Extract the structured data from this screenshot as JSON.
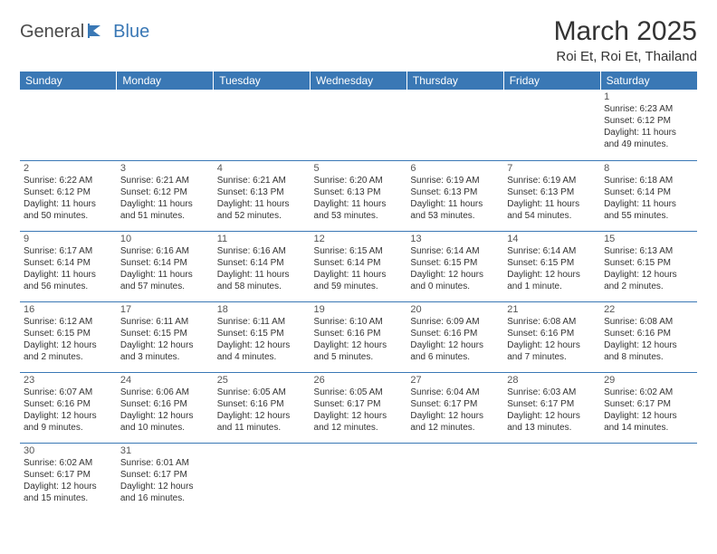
{
  "logo": {
    "part1": "General",
    "part2": "Blue"
  },
  "title": "March 2025",
  "location": "Roi Et, Roi Et, Thailand",
  "colors": {
    "header_bg": "#3a78b5",
    "header_text": "#ffffff",
    "border": "#3a78b5",
    "text": "#333333",
    "logo_gray": "#4a4a4a",
    "logo_blue": "#3a78b5",
    "background": "#ffffff"
  },
  "typography": {
    "title_fontsize": 30,
    "location_fontsize": 15,
    "dayheader_fontsize": 12,
    "cell_fontsize": 10
  },
  "dayHeaders": [
    "Sunday",
    "Monday",
    "Tuesday",
    "Wednesday",
    "Thursday",
    "Friday",
    "Saturday"
  ],
  "weeks": [
    [
      null,
      null,
      null,
      null,
      null,
      null,
      {
        "n": "1",
        "sr": "Sunrise: 6:23 AM",
        "ss": "Sunset: 6:12 PM",
        "d1": "Daylight: 11 hours",
        "d2": "and 49 minutes."
      }
    ],
    [
      {
        "n": "2",
        "sr": "Sunrise: 6:22 AM",
        "ss": "Sunset: 6:12 PM",
        "d1": "Daylight: 11 hours",
        "d2": "and 50 minutes."
      },
      {
        "n": "3",
        "sr": "Sunrise: 6:21 AM",
        "ss": "Sunset: 6:12 PM",
        "d1": "Daylight: 11 hours",
        "d2": "and 51 minutes."
      },
      {
        "n": "4",
        "sr": "Sunrise: 6:21 AM",
        "ss": "Sunset: 6:13 PM",
        "d1": "Daylight: 11 hours",
        "d2": "and 52 minutes."
      },
      {
        "n": "5",
        "sr": "Sunrise: 6:20 AM",
        "ss": "Sunset: 6:13 PM",
        "d1": "Daylight: 11 hours",
        "d2": "and 53 minutes."
      },
      {
        "n": "6",
        "sr": "Sunrise: 6:19 AM",
        "ss": "Sunset: 6:13 PM",
        "d1": "Daylight: 11 hours",
        "d2": "and 53 minutes."
      },
      {
        "n": "7",
        "sr": "Sunrise: 6:19 AM",
        "ss": "Sunset: 6:13 PM",
        "d1": "Daylight: 11 hours",
        "d2": "and 54 minutes."
      },
      {
        "n": "8",
        "sr": "Sunrise: 6:18 AM",
        "ss": "Sunset: 6:14 PM",
        "d1": "Daylight: 11 hours",
        "d2": "and 55 minutes."
      }
    ],
    [
      {
        "n": "9",
        "sr": "Sunrise: 6:17 AM",
        "ss": "Sunset: 6:14 PM",
        "d1": "Daylight: 11 hours",
        "d2": "and 56 minutes."
      },
      {
        "n": "10",
        "sr": "Sunrise: 6:16 AM",
        "ss": "Sunset: 6:14 PM",
        "d1": "Daylight: 11 hours",
        "d2": "and 57 minutes."
      },
      {
        "n": "11",
        "sr": "Sunrise: 6:16 AM",
        "ss": "Sunset: 6:14 PM",
        "d1": "Daylight: 11 hours",
        "d2": "and 58 minutes."
      },
      {
        "n": "12",
        "sr": "Sunrise: 6:15 AM",
        "ss": "Sunset: 6:14 PM",
        "d1": "Daylight: 11 hours",
        "d2": "and 59 minutes."
      },
      {
        "n": "13",
        "sr": "Sunrise: 6:14 AM",
        "ss": "Sunset: 6:15 PM",
        "d1": "Daylight: 12 hours",
        "d2": "and 0 minutes."
      },
      {
        "n": "14",
        "sr": "Sunrise: 6:14 AM",
        "ss": "Sunset: 6:15 PM",
        "d1": "Daylight: 12 hours",
        "d2": "and 1 minute."
      },
      {
        "n": "15",
        "sr": "Sunrise: 6:13 AM",
        "ss": "Sunset: 6:15 PM",
        "d1": "Daylight: 12 hours",
        "d2": "and 2 minutes."
      }
    ],
    [
      {
        "n": "16",
        "sr": "Sunrise: 6:12 AM",
        "ss": "Sunset: 6:15 PM",
        "d1": "Daylight: 12 hours",
        "d2": "and 2 minutes."
      },
      {
        "n": "17",
        "sr": "Sunrise: 6:11 AM",
        "ss": "Sunset: 6:15 PM",
        "d1": "Daylight: 12 hours",
        "d2": "and 3 minutes."
      },
      {
        "n": "18",
        "sr": "Sunrise: 6:11 AM",
        "ss": "Sunset: 6:15 PM",
        "d1": "Daylight: 12 hours",
        "d2": "and 4 minutes."
      },
      {
        "n": "19",
        "sr": "Sunrise: 6:10 AM",
        "ss": "Sunset: 6:16 PM",
        "d1": "Daylight: 12 hours",
        "d2": "and 5 minutes."
      },
      {
        "n": "20",
        "sr": "Sunrise: 6:09 AM",
        "ss": "Sunset: 6:16 PM",
        "d1": "Daylight: 12 hours",
        "d2": "and 6 minutes."
      },
      {
        "n": "21",
        "sr": "Sunrise: 6:08 AM",
        "ss": "Sunset: 6:16 PM",
        "d1": "Daylight: 12 hours",
        "d2": "and 7 minutes."
      },
      {
        "n": "22",
        "sr": "Sunrise: 6:08 AM",
        "ss": "Sunset: 6:16 PM",
        "d1": "Daylight: 12 hours",
        "d2": "and 8 minutes."
      }
    ],
    [
      {
        "n": "23",
        "sr": "Sunrise: 6:07 AM",
        "ss": "Sunset: 6:16 PM",
        "d1": "Daylight: 12 hours",
        "d2": "and 9 minutes."
      },
      {
        "n": "24",
        "sr": "Sunrise: 6:06 AM",
        "ss": "Sunset: 6:16 PM",
        "d1": "Daylight: 12 hours",
        "d2": "and 10 minutes."
      },
      {
        "n": "25",
        "sr": "Sunrise: 6:05 AM",
        "ss": "Sunset: 6:16 PM",
        "d1": "Daylight: 12 hours",
        "d2": "and 11 minutes."
      },
      {
        "n": "26",
        "sr": "Sunrise: 6:05 AM",
        "ss": "Sunset: 6:17 PM",
        "d1": "Daylight: 12 hours",
        "d2": "and 12 minutes."
      },
      {
        "n": "27",
        "sr": "Sunrise: 6:04 AM",
        "ss": "Sunset: 6:17 PM",
        "d1": "Daylight: 12 hours",
        "d2": "and 12 minutes."
      },
      {
        "n": "28",
        "sr": "Sunrise: 6:03 AM",
        "ss": "Sunset: 6:17 PM",
        "d1": "Daylight: 12 hours",
        "d2": "and 13 minutes."
      },
      {
        "n": "29",
        "sr": "Sunrise: 6:02 AM",
        "ss": "Sunset: 6:17 PM",
        "d1": "Daylight: 12 hours",
        "d2": "and 14 minutes."
      }
    ],
    [
      {
        "n": "30",
        "sr": "Sunrise: 6:02 AM",
        "ss": "Sunset: 6:17 PM",
        "d1": "Daylight: 12 hours",
        "d2": "and 15 minutes."
      },
      {
        "n": "31",
        "sr": "Sunrise: 6:01 AM",
        "ss": "Sunset: 6:17 PM",
        "d1": "Daylight: 12 hours",
        "d2": "and 16 minutes."
      },
      null,
      null,
      null,
      null,
      null
    ]
  ]
}
